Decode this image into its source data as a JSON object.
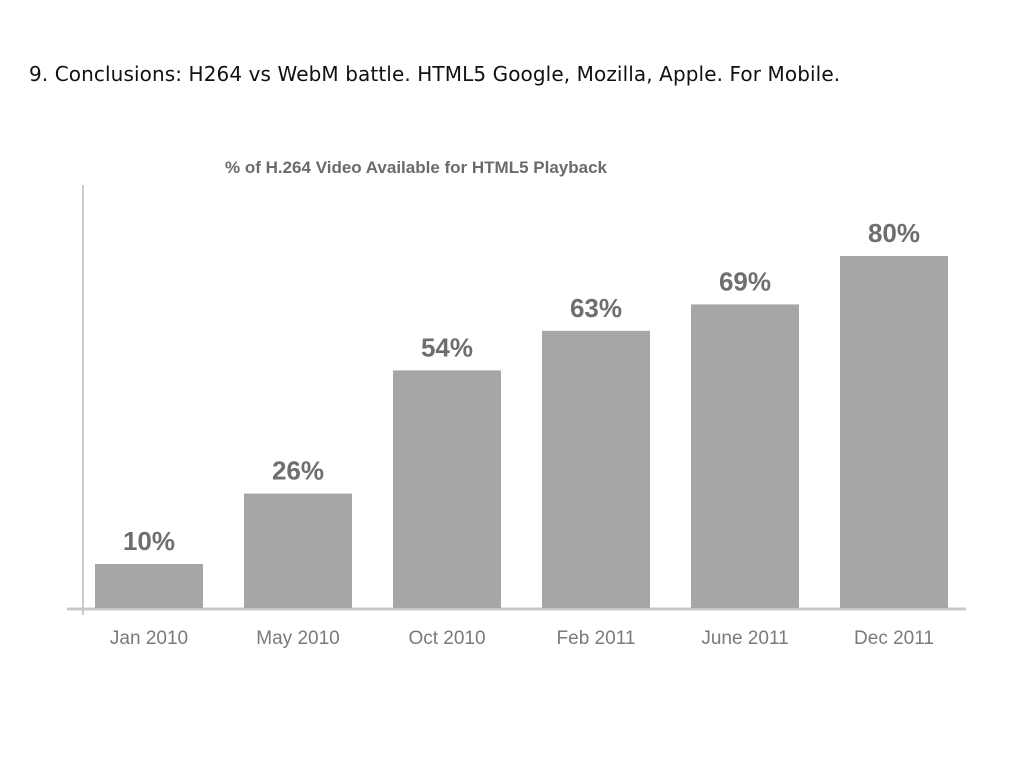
{
  "slide": {
    "title": "9. Conclusions: H264 vs WebM battle. HTML5 Google, Mozilla, Apple. For Mobile."
  },
  "colors": {
    "bar": "#a6a6a6",
    "axis": "#c8c8c8",
    "label": "#6e6e6e"
  },
  "chart_data": {
    "type": "bar",
    "title": "% of H.264 Video Available for HTML5 Playback",
    "categories": [
      "Jan 2010",
      "May 2010",
      "Oct 2010",
      "Feb 2011",
      "June 2011",
      "Dec 2011"
    ],
    "values": [
      10,
      26,
      54,
      63,
      69,
      80
    ],
    "value_labels": [
      "10%",
      "26%",
      "54%",
      "63%",
      "69%",
      "80%"
    ],
    "xlabel": "",
    "ylabel": "",
    "ylim": [
      0,
      100
    ],
    "grid": false,
    "legend": "none"
  }
}
